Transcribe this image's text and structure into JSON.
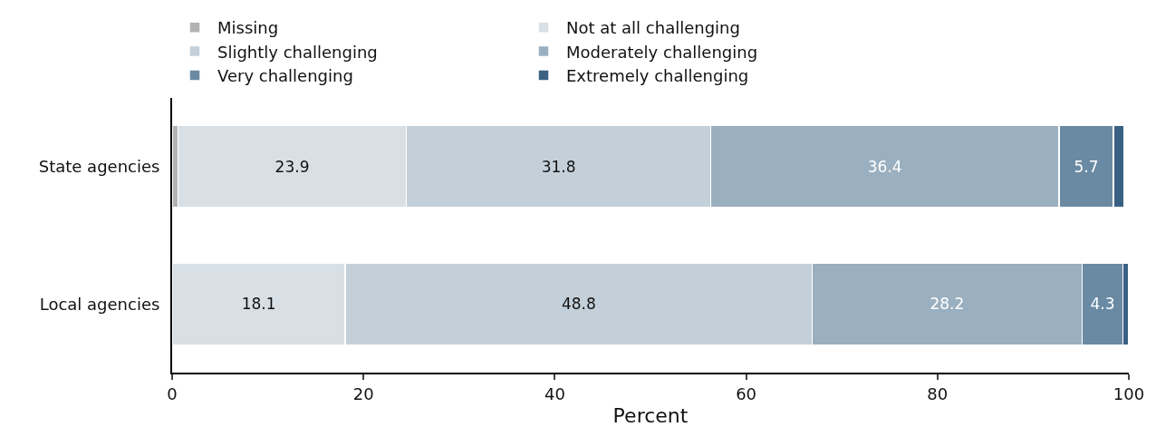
{
  "chart_data": {
    "type": "bar",
    "orientation": "horizontal",
    "stacked": true,
    "xlabel": "Percent",
    "categories": [
      "State agencies",
      "Local agencies"
    ],
    "series": [
      {
        "name": "Missing",
        "color": "#b3b3b3",
        "values": [
          0.6,
          null
        ],
        "value_labels": [
          null,
          null
        ]
      },
      {
        "name": "Not at all challenging",
        "color": "#d8e0e6",
        "values": [
          23.9,
          18.1
        ],
        "value_labels": [
          "23.9",
          "18.1"
        ]
      },
      {
        "name": "Slightly challenging",
        "color": "#c3d0d9",
        "values": [
          31.8,
          48.8
        ],
        "value_labels": [
          "31.8",
          "48.8"
        ]
      },
      {
        "name": "Moderately challenging",
        "color": "#9aafbf",
        "values": [
          36.4,
          28.2
        ],
        "value_labels": [
          "36.4",
          "28.2"
        ]
      },
      {
        "name": "Very challenging",
        "color": "#6a8aa3",
        "values": [
          5.7,
          4.3
        ],
        "value_labels": [
          "5.7",
          "4.3"
        ]
      },
      {
        "name": "Extremely challenging",
        "color": "#3a6183",
        "values": [
          1.1,
          0.6
        ],
        "value_labels": [
          null,
          null
        ]
      }
    ],
    "xlim": [
      0,
      100
    ],
    "xticks": [
      0,
      20,
      40,
      60,
      80,
      100
    ],
    "grid": false,
    "legend": "top"
  }
}
